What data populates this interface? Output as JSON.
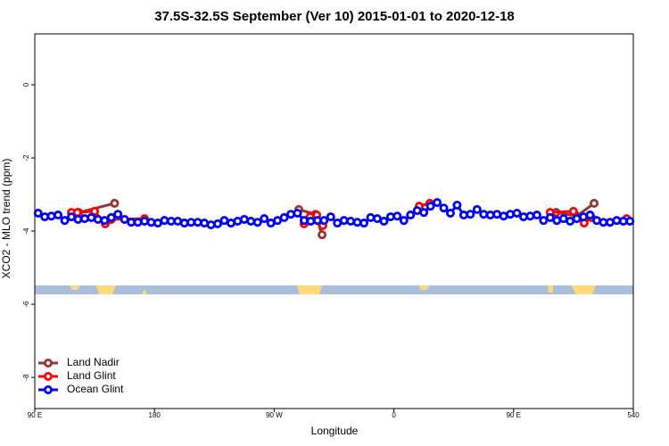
{
  "chart_data": {
    "type": "line",
    "title": "37.5S-32.5S September (Ver 10)   2015-01-01 to 2020-12-18",
    "x_label": "Longitude",
    "y_label": "XCO2 - MLO trend (ppm)",
    "xlim": [
      90,
      540
    ],
    "ylim": [
      -8.85,
      1.39
    ],
    "xticks": [
      {
        "value": 90,
        "label": "90 E"
      },
      180,
      {
        "value": 270,
        "label": "90 W"
      },
      {
        "value": 360,
        "label": "0"
      },
      {
        "value": 450,
        "label": "90 E"
      },
      540
    ],
    "yticks": [
      0,
      -2,
      -4,
      -6,
      -8
    ],
    "legend": "bottom-left",
    "series": [
      {
        "name": "Land Nadir",
        "color": "#993333",
        "x": [
          123,
          150,
          null,
          288.5,
          301,
          306,
          null,
          379,
          null,
          482,
          497.5,
          510.5
        ],
        "values": [
          -3.49,
          -3.24,
          null,
          -3.41,
          -3.54,
          -4.1,
          null,
          -3.37,
          null,
          -3.49,
          -3.59,
          -3.24
        ]
      },
      {
        "name": "Land Glint",
        "color": "#ff0000",
        "x": [
          117.5,
          122,
          135,
          143,
          147.5,
          172.5,
          null,
          292.5,
          297,
          302,
          306.5,
          null,
          379,
          387,
          null,
          477.5,
          495,
          503,
          508.5,
          null,
          535
        ],
        "values": [
          -3.49,
          -3.49,
          -3.46,
          -3.8,
          -3.68,
          -3.66,
          null,
          -3.8,
          -3.61,
          -3.56,
          -3.85,
          null,
          -3.32,
          -3.24,
          null,
          -3.49,
          -3.46,
          -3.78,
          -3.63,
          null,
          -3.66
        ]
      },
      {
        "name": "Ocean Glint",
        "color": "#0000ee",
        "x": [
          92.5,
          97.5,
          102.5,
          107.5,
          112.5,
          117.5,
          122.5,
          127.5,
          132.5,
          137.5,
          142.5,
          147.5,
          152.5,
          157.5,
          162.5,
          167.5,
          172.5,
          177.5,
          182.5,
          187.5,
          192.5,
          197.5,
          202.5,
          207.5,
          212.5,
          217.5,
          222.5,
          227.5,
          232.5,
          237.5,
          242.5,
          247.5,
          252.5,
          257.5,
          262.5,
          267.5,
          272.5,
          277.5,
          282.5,
          287.5,
          292.5,
          297.5,
          302.5,
          307.5,
          312.5,
          317.5,
          322.5,
          327.5,
          332.5,
          337.5,
          342.5,
          347.5,
          352.5,
          357.5,
          362.5,
          367.5,
          372.5,
          377.5,
          382.5,
          387.5,
          392.5,
          397.5,
          402.5,
          407.5,
          412.5,
          417.5,
          422.5,
          427.5,
          432.5,
          437.5,
          442.5,
          447.5,
          452.5,
          457.5,
          462.5,
          467.5,
          472.5,
          477.5,
          482.5,
          487.5,
          492.5,
          497.5,
          502.5,
          507.5,
          512.5,
          517.5,
          522.5,
          527.5,
          532.5,
          537.5
        ],
        "values": [
          -3.51,
          -3.61,
          -3.59,
          -3.56,
          -3.71,
          -3.61,
          -3.68,
          -3.66,
          -3.63,
          -3.68,
          -3.71,
          -3.63,
          -3.54,
          -3.68,
          -3.76,
          -3.76,
          -3.73,
          -3.76,
          -3.78,
          -3.71,
          -3.73,
          -3.73,
          -3.78,
          -3.76,
          -3.76,
          -3.78,
          -3.83,
          -3.8,
          -3.71,
          -3.78,
          -3.73,
          -3.68,
          -3.73,
          -3.76,
          -3.66,
          -3.78,
          -3.71,
          -3.63,
          -3.54,
          -3.51,
          -3.71,
          -3.73,
          -3.71,
          -3.71,
          -3.61,
          -3.78,
          -3.71,
          -3.73,
          -3.76,
          -3.78,
          -3.63,
          -3.66,
          -3.73,
          -3.61,
          -3.59,
          -3.71,
          -3.56,
          -3.44,
          -3.49,
          -3.32,
          -3.22,
          -3.37,
          -3.51,
          -3.29,
          -3.56,
          -3.54,
          -3.41,
          -3.54,
          -3.56,
          -3.54,
          -3.59,
          -3.54,
          -3.51,
          -3.61,
          -3.59,
          -3.56,
          -3.71,
          -3.63,
          -3.71,
          -3.66,
          -3.73,
          -3.66,
          -3.61,
          -3.56,
          -3.71,
          -3.76,
          -3.76,
          -3.71,
          -3.73,
          -3.73
        ]
      }
    ]
  }
}
